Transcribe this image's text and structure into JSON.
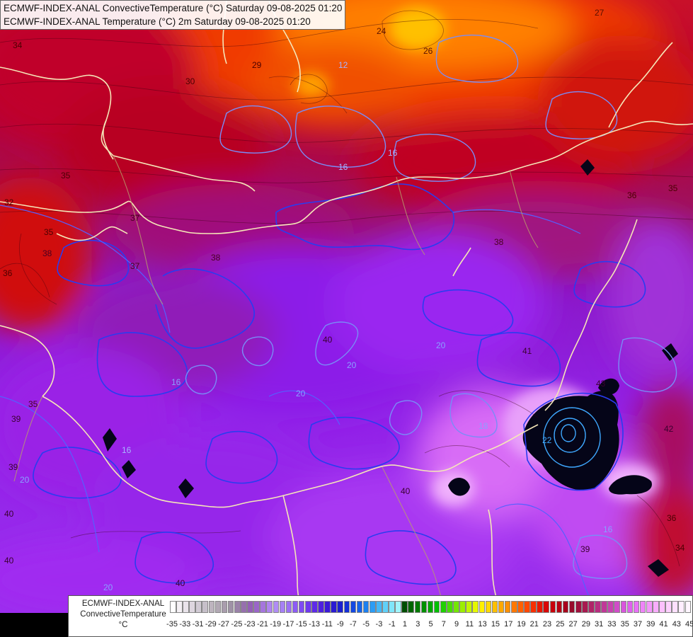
{
  "header": {
    "line1": "ECMWF-INDEX-ANAL ConvectiveTemperature (°C) Saturday 09-08-2025 01:20",
    "line2": "ECMWF-INDEX-ANAL Temperature (°C) 2m Saturday 09-08-2025 01:20"
  },
  "legend": {
    "title_line1": "ECMWF-INDEX-ANAL",
    "title_line2": "ConvectiveTemperature",
    "unit": "°C",
    "tick_labels": [
      "-35",
      "-33",
      "-31",
      "-29",
      "-27",
      "-25",
      "-23",
      "-21",
      "-19",
      "-17",
      "-15",
      "-13",
      "-11",
      "-9",
      "-7",
      "-5",
      "-3",
      "-1",
      "1",
      "3",
      "5",
      "7",
      "9",
      "11",
      "13",
      "15",
      "17",
      "19",
      "21",
      "23",
      "25",
      "27",
      "29",
      "31",
      "33",
      "35",
      "37",
      "39",
      "41",
      "43",
      "45"
    ],
    "swatch_colors": [
      "#ffffff",
      "#f4f0f4",
      "#e9e3ea",
      "#ddd6df",
      "#d1cad4",
      "#c6bfc9",
      "#bdb4be",
      "#b2a8b4",
      "#a99dad",
      "#9f92a6",
      "#9a82a8",
      "#9670ad",
      "#9460b6",
      "#9a66c8",
      "#a575dd",
      "#af84f0",
      "#b08df5",
      "#a680f5",
      "#9b70f5",
      "#8c5cf5",
      "#7e4af2",
      "#6e38ee",
      "#5e2ae8",
      "#4e20e0",
      "#3b1ad8",
      "#2a1ad2",
      "#1b1fd0",
      "#1430d8",
      "#1448e2",
      "#1462ea",
      "#1c80f0",
      "#2c9cf4",
      "#44b8f6",
      "#60d0f8",
      "#80e6fa",
      "#a0f4fc",
      "#004d00",
      "#006400",
      "#007a00",
      "#009000",
      "#00a800",
      "#00c000",
      "#20d000",
      "#48dc00",
      "#74e600",
      "#9cee00",
      "#c4f400",
      "#e6f800",
      "#fff000",
      "#ffd800",
      "#ffc000",
      "#ffa800",
      "#ff9000",
      "#ff7800",
      "#ff6000",
      "#ff4800",
      "#f83000",
      "#e81800",
      "#d80808",
      "#c8000c",
      "#b80014",
      "#a8001c",
      "#980c2c",
      "#a0103c",
      "#a81a50",
      "#b02468",
      "#b82e80",
      "#c03898",
      "#c842b0",
      "#d04cc8",
      "#d856dc",
      "#e060ee",
      "#e870f6",
      "#ef84f8",
      "#f498fa",
      "#f8acfc",
      "#fcc0fe",
      "#fdd0fe",
      "#fee0ff",
      "#ffeeff",
      "#fff6ff"
    ]
  },
  "map_labels": {
    "contour_values": [
      "34",
      "35",
      "30",
      "29",
      "24",
      "26",
      "27",
      "12",
      "16",
      "16",
      "16",
      "35",
      "36",
      "37",
      "38",
      "32",
      "38",
      "35",
      "38",
      "39",
      "40",
      "40",
      "41",
      "43",
      "42",
      "20",
      "20",
      "20",
      "18",
      "16",
      "16",
      "39",
      "39",
      "40",
      "40",
      "22",
      "34",
      "36",
      "37",
      "36",
      "35",
      "20",
      "20",
      "40"
    ]
  }
}
